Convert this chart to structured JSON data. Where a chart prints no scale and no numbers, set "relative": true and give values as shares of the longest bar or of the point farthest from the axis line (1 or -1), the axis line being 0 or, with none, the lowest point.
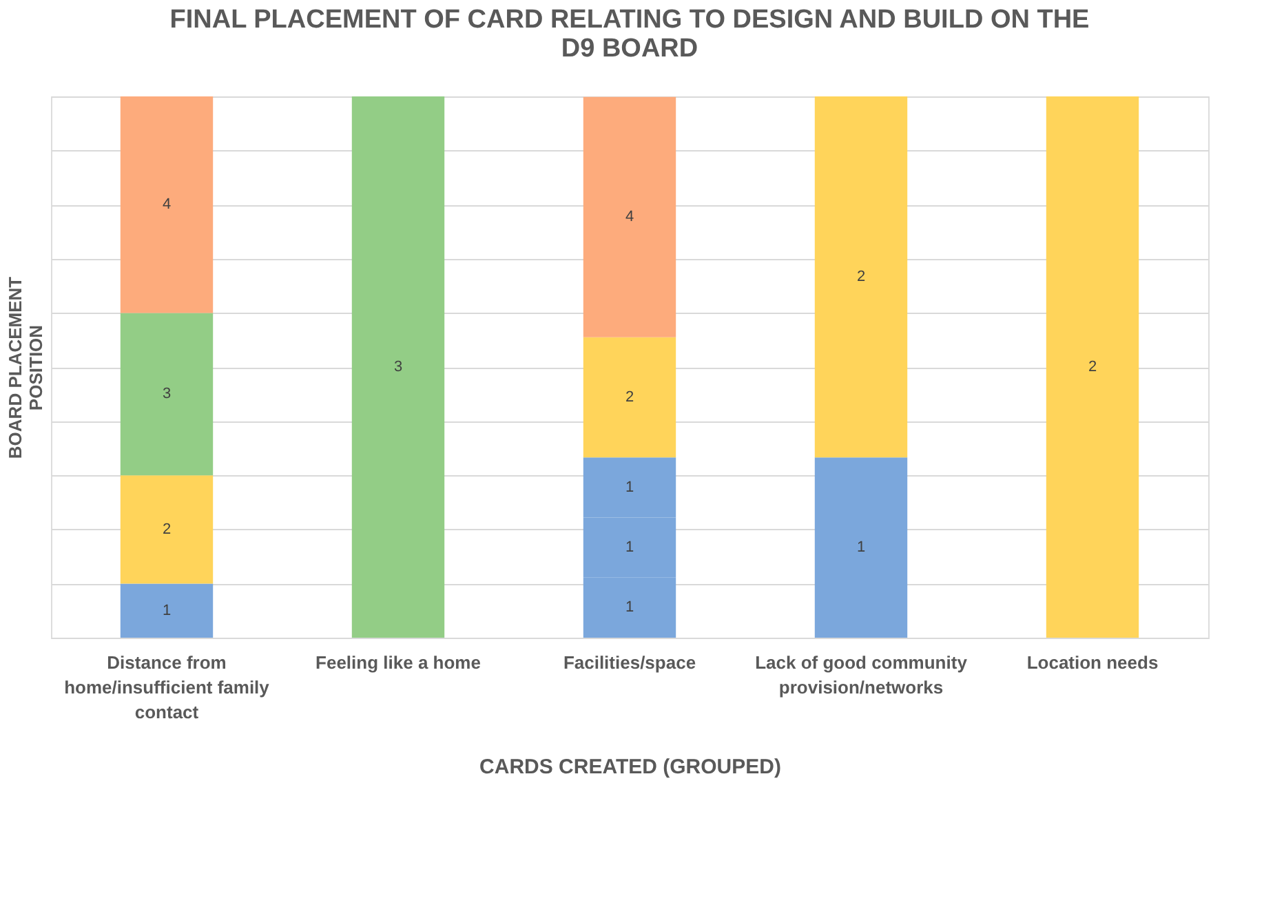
{
  "chart_data": {
    "type": "bar",
    "title": "FINAL PLACEMENT OF CARD RELATING TO DESIGN AND BUILD ON THE D9 BOARD",
    "xlabel": "CARDS CREATED (GROUPED)",
    "ylabel": "BOARD PLACEMENT POSITION",
    "categories": [
      "Distance from home/insufficient family contact",
      "Feeling like a home",
      "Facilities/space",
      "Lack of good community provision/networks",
      "Location needs"
    ],
    "stacked": true,
    "relative": true,
    "grid": "y",
    "series": [
      {
        "color": "#7ba7dc",
        "values": [
          0.1,
          null,
          0.111,
          0.333,
          null
        ]
      },
      {
        "color": "#7ba7dc",
        "values": [
          null,
          null,
          0.111,
          null,
          null
        ]
      },
      {
        "color": "#7ba7dc",
        "values": [
          null,
          null,
          0.111,
          null,
          null
        ]
      },
      {
        "color": "#ffd45a",
        "values": [
          0.2,
          null,
          0.222,
          0.667,
          1
        ]
      },
      {
        "color": "#93cd86",
        "values": [
          0.3,
          1,
          null,
          null,
          null
        ]
      },
      {
        "color": "#fdab7c",
        "values": [
          0.4,
          null,
          0.444,
          null,
          null
        ]
      }
    ],
    "annotations": [
      "1",
      "2",
      "3",
      "4",
      "3",
      "1",
      "1",
      "1",
      "2",
      "4",
      "1",
      "2",
      "2"
    ]
  }
}
